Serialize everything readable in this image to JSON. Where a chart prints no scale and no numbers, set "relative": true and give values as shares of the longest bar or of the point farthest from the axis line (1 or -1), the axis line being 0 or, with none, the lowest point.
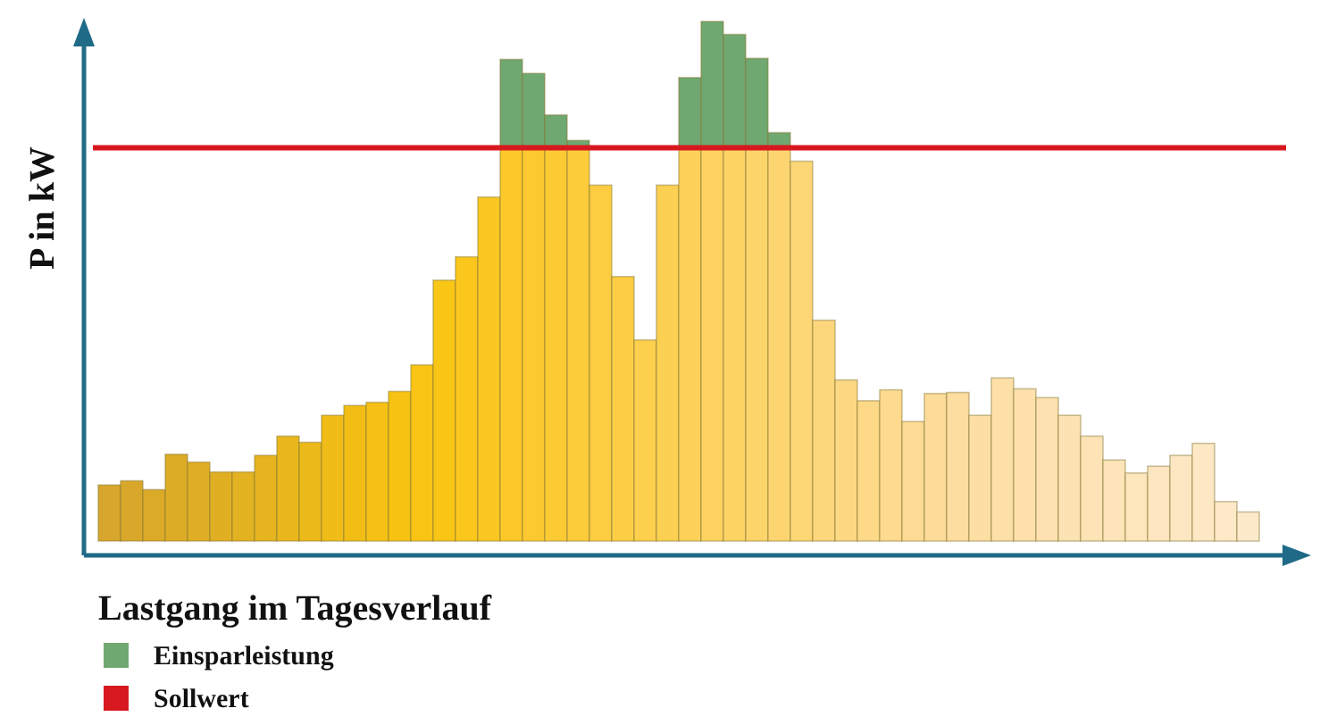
{
  "chart_data": {
    "type": "bar",
    "relative": true,
    "stacked": true,
    "xlabel": "Lastgang im Tagesverlauf",
    "ylabel": "P in kW",
    "legend": "bottom left",
    "categories": [
      null,
      null,
      null,
      null,
      null,
      null,
      null,
      null,
      null,
      null,
      null,
      null,
      null,
      null,
      null,
      null,
      null,
      null,
      null,
      null,
      null,
      null,
      null,
      null,
      null,
      null,
      null,
      null,
      null,
      null,
      null,
      null,
      null,
      null,
      null,
      null,
      null,
      null,
      null,
      null,
      null,
      null,
      null,
      null,
      null,
      null,
      null,
      null,
      null,
      null,
      null,
      null
    ],
    "series": [
      {
        "colors": [
          "#d8a62c",
          "#d9a82a",
          "#dbaa28",
          "#ddac26",
          "#dfae24",
          "#e1b022",
          "#e3b220",
          "#e6b41e",
          "#e9b71c",
          "#ecb91a",
          "#efbc18",
          "#f2be16",
          "#f5c114",
          "#f7c313",
          "#f9c414",
          "#fac616",
          "#fbc71c",
          "#fbc822",
          "#fcc928",
          "#fcca2e",
          "#fccb34",
          "#fccc3a",
          "#fccd40",
          "#fcce46",
          "#fccf4c",
          "#fcd052",
          "#fdd158",
          "#fdd25e",
          "#fdd364",
          "#fdd46a",
          "#fdd570",
          "#fdd676",
          "#fdd77c",
          "#fdd882",
          "#fdd988",
          "#fdda8e",
          "#fddb94",
          "#fddc9a",
          "#fddda0",
          "#fddea4",
          "#fddfa8",
          "#fde0ac",
          "#fde1b0",
          "#fde2b3",
          "#fde3b6",
          "#fde4b9",
          "#fde5bc",
          "#fde6bf",
          "#fde7c2",
          "#fde8c5",
          "#fde9c8",
          "#fdeacb"
        ],
        "values": [
          0.108,
          0.116,
          0.099,
          0.167,
          0.152,
          0.133,
          0.133,
          0.165,
          0.202,
          0.19,
          0.242,
          0.261,
          0.267,
          0.288,
          0.339,
          0.502,
          0.547,
          0.662,
          0.757,
          0.757,
          0.757,
          0.757,
          0.685,
          0.509,
          0.387,
          0.685,
          0.757,
          0.757,
          0.757,
          0.757,
          0.757,
          0.731,
          0.425,
          0.31,
          0.27,
          0.291,
          0.23,
          0.284,
          0.286,
          0.242,
          0.314,
          0.293,
          0.276,
          0.242,
          0.202,
          0.156,
          0.131,
          0.144,
          0.165,
          0.188,
          0.076,
          0.056
        ]
      },
      {
        "name": "Einsparleistung",
        "color": "#6fa870",
        "values": [
          0,
          0,
          0,
          0,
          0,
          0,
          0,
          0,
          0,
          0,
          0,
          0,
          0,
          0,
          0,
          0,
          0,
          0,
          0.17,
          0.143,
          0.063,
          0.014,
          0,
          0,
          0,
          0,
          0.135,
          0.243,
          0.218,
          0.172,
          0.029,
          0,
          0,
          0,
          0,
          0,
          0,
          0,
          0,
          0,
          0,
          0,
          0,
          0,
          0,
          0,
          0,
          0,
          0,
          0,
          0,
          0
        ]
      }
    ],
    "ref_lines": [
      {
        "axis": "y",
        "value": 0.757,
        "label": "Sollwert",
        "color": "#d7191f"
      }
    ]
  }
}
